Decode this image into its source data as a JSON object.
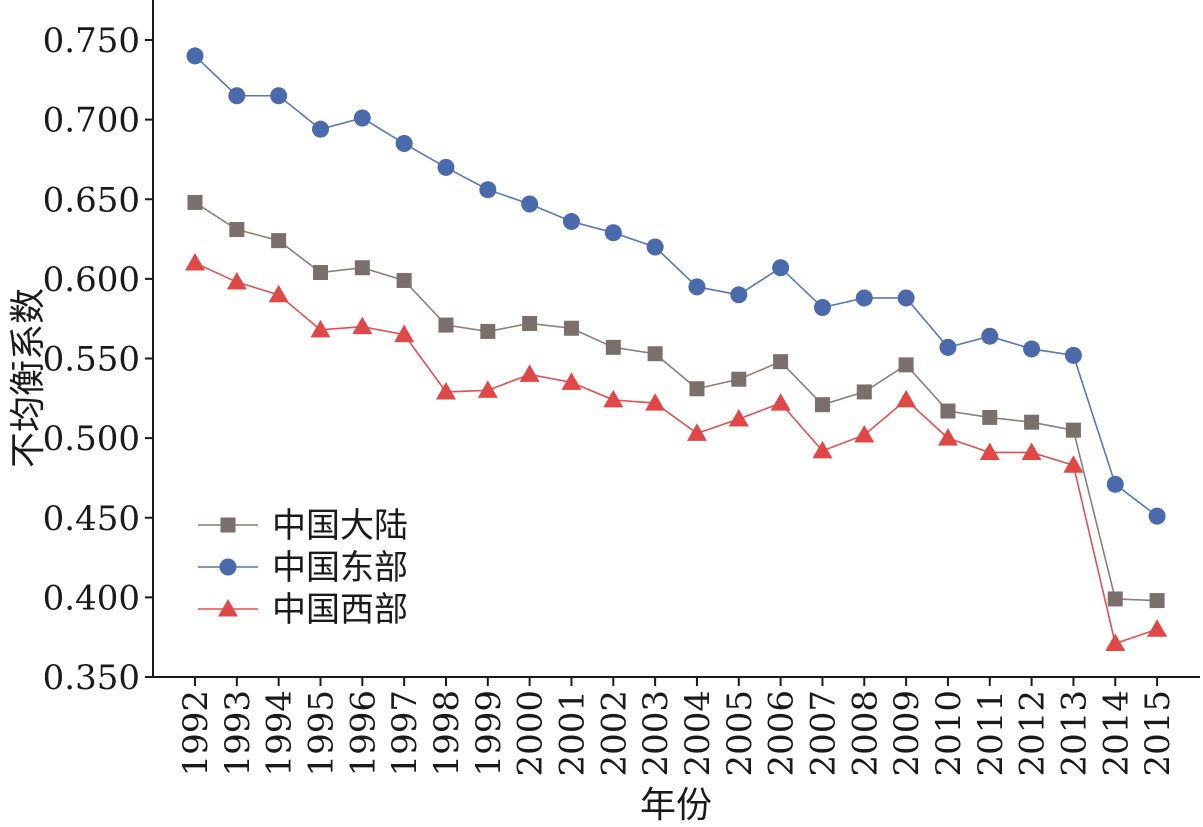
{
  "chart_data": {
    "type": "line",
    "xlabel": "年份",
    "ylabel": "不均衡系数",
    "categories": [
      "1992",
      "1993",
      "1994",
      "1995",
      "1996",
      "1997",
      "1998",
      "1999",
      "2000",
      "2001",
      "2002",
      "2003",
      "2004",
      "2005",
      "2006",
      "2007",
      "2008",
      "2009",
      "2010",
      "2011",
      "2012",
      "2013",
      "2014",
      "2015"
    ],
    "ylim": [
      0.35,
      0.75
    ],
    "yticks": [
      "0.350",
      "0.400",
      "0.450",
      "0.500",
      "0.550",
      "0.600",
      "0.650",
      "0.700",
      "0.750"
    ],
    "legend_position": "bottom-left",
    "grid": false,
    "series": [
      {
        "name": "中国大陆",
        "marker": "square",
        "marker_color": "#7a6f6b",
        "line_color": "#8c7f7a",
        "values": [
          0.648,
          0.631,
          0.624,
          0.604,
          0.607,
          0.599,
          0.571,
          0.567,
          0.572,
          0.569,
          0.557,
          0.553,
          0.531,
          0.537,
          0.548,
          0.521,
          0.529,
          0.546,
          0.517,
          0.513,
          0.51,
          0.505,
          0.399,
          0.398
        ]
      },
      {
        "name": "中国东部",
        "marker": "circle",
        "marker_color": "#4a6aac",
        "line_color": "#5577bb",
        "values": [
          0.74,
          0.715,
          0.715,
          0.694,
          0.701,
          0.685,
          0.67,
          0.656,
          0.647,
          0.636,
          0.629,
          0.62,
          0.595,
          0.59,
          0.607,
          0.582,
          0.588,
          0.588,
          0.557,
          0.564,
          0.556,
          0.552,
          0.471,
          0.451
        ]
      },
      {
        "name": "中国西部",
        "marker": "triangle",
        "marker_color": "#e04848",
        "line_color": "#e05050",
        "values": [
          0.61,
          0.598,
          0.59,
          0.568,
          0.57,
          0.565,
          0.529,
          0.53,
          0.54,
          0.535,
          0.524,
          0.522,
          0.503,
          0.512,
          0.522,
          0.492,
          0.502,
          0.524,
          0.5,
          0.491,
          0.491,
          0.483,
          0.371,
          0.38
        ]
      }
    ]
  }
}
